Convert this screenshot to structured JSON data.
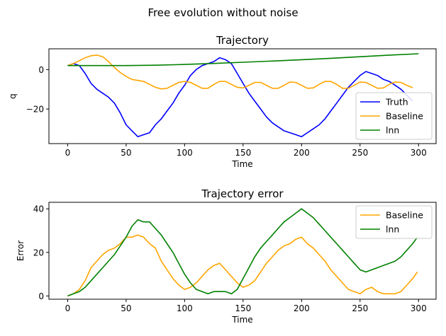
{
  "figure": {
    "suptitle": "Free evolution without noise"
  },
  "chart_data": [
    {
      "type": "line",
      "title": "Trajectory",
      "xlabel": "Time",
      "ylabel": "q",
      "xlim": [
        -16,
        315
      ],
      "ylim": [
        -37.5,
        10.5
      ],
      "xticks": [
        0,
        50,
        100,
        150,
        200,
        250,
        300
      ],
      "yticks": [
        0,
        -20
      ],
      "ytick_labels": [
        "0",
        "−20"
      ],
      "legend_position": "lower-right",
      "series": [
        {
          "name": "Truth",
          "color": "#0000ff",
          "x": [
            0,
            5,
            10,
            15,
            20,
            25,
            30,
            35,
            40,
            45,
            50,
            55,
            60,
            65,
            70,
            75,
            80,
            85,
            90,
            95,
            100,
            105,
            110,
            115,
            120,
            125,
            130,
            135,
            140,
            145,
            150,
            155,
            160,
            165,
            170,
            175,
            180,
            185,
            190,
            195,
            200,
            205,
            210,
            215,
            220,
            225,
            230,
            235,
            240,
            245,
            250,
            255,
            260,
            265,
            270,
            275,
            280,
            285,
            290,
            295
          ],
          "y": [
            2,
            3,
            2,
            -2,
            -7,
            -10,
            -12,
            -14,
            -17,
            -22,
            -28,
            -31,
            -34,
            -33,
            -32,
            -28,
            -25,
            -21,
            -17,
            -12,
            -8,
            -3,
            0,
            2,
            3,
            4,
            6,
            5,
            3,
            -2,
            -7,
            -12,
            -16,
            -20,
            -24,
            -27,
            -29,
            -31,
            -32,
            -33,
            -34,
            -32,
            -30,
            -28,
            -25,
            -21,
            -17,
            -13,
            -9,
            -6,
            -3,
            -1,
            -2,
            -3,
            -5,
            -6,
            -8,
            -10,
            -13,
            -16
          ]
        },
        {
          "name": "Baseline",
          "color": "#ffa500",
          "x": [
            0,
            5,
            10,
            15,
            20,
            25,
            30,
            35,
            40,
            45,
            50,
            55,
            60,
            65,
            70,
            75,
            80,
            85,
            90,
            95,
            100,
            105,
            110,
            115,
            120,
            125,
            130,
            135,
            140,
            145,
            150,
            155,
            160,
            165,
            170,
            175,
            180,
            185,
            190,
            195,
            200,
            205,
            210,
            215,
            220,
            225,
            230,
            235,
            240,
            245,
            250,
            255,
            260,
            265,
            270,
            275,
            280,
            285,
            290,
            295
          ],
          "y": [
            2,
            3,
            4.5,
            6,
            7,
            7.3,
            6.5,
            4,
            1,
            -1.5,
            -3.5,
            -5,
            -5.5,
            -6,
            -7.5,
            -9,
            -9.8,
            -9.5,
            -8,
            -6.5,
            -6,
            -6.5,
            -8,
            -9.5,
            -9.5,
            -7.5,
            -6,
            -6,
            -7.5,
            -9,
            -9.3,
            -8,
            -6.5,
            -6.5,
            -8,
            -9.5,
            -9.5,
            -8,
            -6.3,
            -6.5,
            -8,
            -9.5,
            -9.3,
            -7.5,
            -6,
            -6,
            -7.5,
            -9.5,
            -9.5,
            -8,
            -6.3,
            -6.5,
            -8,
            -9.5,
            -9.3,
            -7.5,
            -6.3,
            -6.5,
            -8,
            -9.2
          ]
        },
        {
          "name": "lnn",
          "color": "#008000",
          "x": [
            0,
            25,
            50,
            75,
            100,
            125,
            150,
            175,
            200,
            225,
            250,
            275,
            300
          ],
          "y": [
            2,
            2,
            2,
            2.2,
            2.6,
            3.1,
            3.7,
            4.3,
            5,
            5.7,
            6.5,
            7.3,
            8
          ]
        }
      ]
    },
    {
      "type": "line",
      "title": "Trajectory error",
      "xlabel": "Time",
      "ylabel": "Error",
      "xlim": [
        -16,
        315
      ],
      "ylim": [
        -1.5,
        43
      ],
      "xticks": [
        0,
        50,
        100,
        150,
        200,
        250,
        300
      ],
      "yticks": [
        0,
        20,
        40
      ],
      "ytick_labels": [
        "0",
        "20",
        "40"
      ],
      "legend_position": "upper-right",
      "series": [
        {
          "name": "Baseline",
          "color": "#ffa500",
          "x": [
            0,
            5,
            10,
            15,
            20,
            25,
            30,
            35,
            40,
            45,
            50,
            55,
            60,
            65,
            70,
            75,
            80,
            85,
            90,
            95,
            100,
            105,
            110,
            115,
            120,
            125,
            130,
            135,
            140,
            145,
            150,
            155,
            160,
            165,
            170,
            175,
            180,
            185,
            190,
            195,
            200,
            205,
            210,
            215,
            220,
            225,
            230,
            235,
            240,
            245,
            250,
            255,
            260,
            265,
            270,
            275,
            280,
            285,
            290,
            295,
            299
          ],
          "y": [
            0,
            1,
            3,
            7,
            13,
            16,
            19,
            21,
            22,
            24,
            27,
            27,
            28,
            27,
            24,
            22,
            16,
            12,
            8,
            5,
            3,
            4,
            6,
            9,
            12,
            14,
            15,
            12,
            9,
            6,
            4,
            5,
            7,
            11,
            15,
            18,
            21,
            23,
            24,
            26,
            27,
            24,
            22,
            19,
            16,
            12,
            9,
            6,
            3,
            2,
            1,
            3,
            4,
            2,
            1,
            1,
            1,
            2,
            5,
            8,
            11
          ]
        },
        {
          "name": "lnn",
          "color": "#008000",
          "x": [
            0,
            5,
            10,
            15,
            20,
            25,
            30,
            35,
            40,
            45,
            50,
            55,
            60,
            65,
            70,
            75,
            80,
            85,
            90,
            95,
            100,
            105,
            110,
            115,
            120,
            125,
            130,
            135,
            140,
            145,
            150,
            155,
            160,
            165,
            170,
            175,
            180,
            185,
            190,
            195,
            200,
            205,
            210,
            215,
            220,
            225,
            230,
            235,
            240,
            245,
            250,
            255,
            260,
            265,
            270,
            275,
            280,
            285,
            290,
            295,
            299
          ],
          "y": [
            0,
            1,
            2,
            4,
            7,
            10,
            13,
            16,
            19,
            23,
            27,
            32,
            35,
            34,
            34,
            31,
            28,
            24,
            20,
            15,
            10,
            6,
            3,
            2,
            1,
            2,
            2,
            2,
            1,
            3,
            8,
            13,
            18,
            22,
            25,
            28,
            31,
            34,
            36,
            38,
            40,
            38,
            36,
            33,
            30,
            27,
            24,
            21,
            18,
            15,
            12,
            11,
            12,
            13,
            14,
            15,
            16,
            18,
            21,
            24,
            27
          ]
        }
      ]
    }
  ]
}
